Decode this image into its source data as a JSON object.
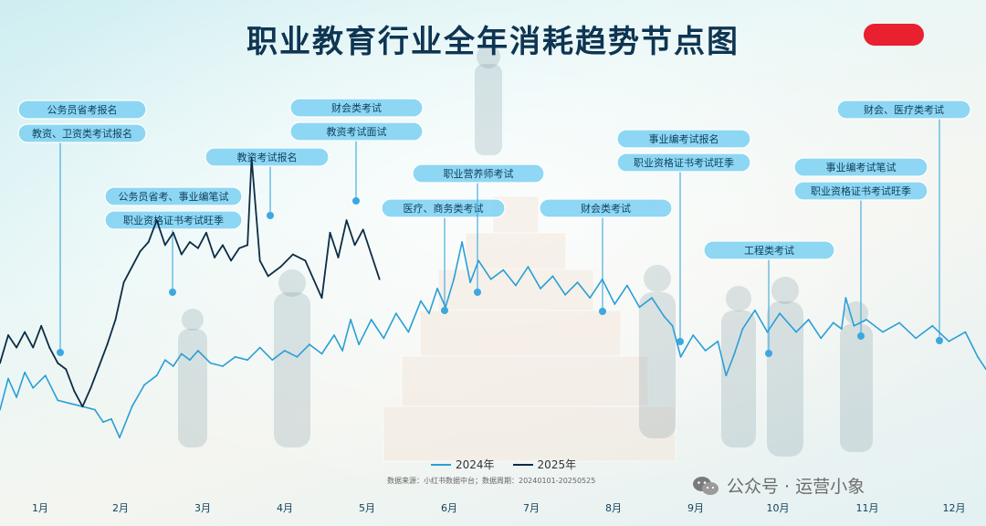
{
  "title": "职业教育行业全年消耗趋势节点图",
  "legend": [
    {
      "label": "2024年",
      "color": "#2a9fd6"
    },
    {
      "label": "2025年",
      "color": "#0d2d45"
    }
  ],
  "source": "数据来源：小红书数据中台；数据周期：20240101-20250525",
  "watermark": "公众号 · 运营小象",
  "months": [
    "1月",
    "2月",
    "3月",
    "4月",
    "5月",
    "6月",
    "7月",
    "8月",
    "9月",
    "10月",
    "11月",
    "12月"
  ],
  "annotations": [
    {
      "labels": [
        "公务员省考报名",
        "教资、卫资类考试报名"
      ],
      "month": 1.25
    },
    {
      "labels": [
        "公务员省考、事业编笔试",
        "职业资格证书考试旺季"
      ],
      "month": 2.65
    },
    {
      "labels": [
        "教资考试报名"
      ],
      "month": 3.8
    },
    {
      "labels": [
        "财会类考试",
        "教资考试面试"
      ],
      "month": 4.85
    },
    {
      "labels": [
        "医疗、商务类考试"
      ],
      "month": 5.95
    },
    {
      "labels": [
        "职业营养师考试"
      ],
      "month": 6.35
    },
    {
      "labels": [
        "财会类考试"
      ],
      "month": 7.95
    },
    {
      "labels": [
        "事业编考试报名",
        "职业资格证书考试旺季"
      ],
      "month": 8.85
    },
    {
      "labels": [
        "工程类考试"
      ],
      "month": 9.85
    },
    {
      "labels": [
        "事业编考试笔试",
        "职业资格证书考试旺季"
      ],
      "month": 10.9
    },
    {
      "labels": [
        "财会、医疗类考试"
      ],
      "month": 11.9
    }
  ],
  "chart_data": {
    "type": "line",
    "title": "职业教育行业全年消耗趋势节点图",
    "x_unit": "month",
    "xlim": [
      0.8,
      12.75
    ],
    "ylim": [
      0,
      100
    ],
    "x_ticks": [
      "1月",
      "2月",
      "3月",
      "4月",
      "5月",
      "6月",
      "7月",
      "8月",
      "9月",
      "10月",
      "11月",
      "12月"
    ],
    "series": [
      {
        "name": "2024年",
        "color": "#2a9fd6",
        "points": [
          [
            0.8,
            21
          ],
          [
            0.9,
            31
          ],
          [
            1.0,
            25
          ],
          [
            1.1,
            33
          ],
          [
            1.2,
            28
          ],
          [
            1.35,
            32
          ],
          [
            1.5,
            24
          ],
          [
            1.65,
            23
          ],
          [
            1.8,
            22
          ],
          [
            1.95,
            21
          ],
          [
            2.05,
            17
          ],
          [
            2.15,
            18
          ],
          [
            2.25,
            12
          ],
          [
            2.4,
            22
          ],
          [
            2.55,
            29
          ],
          [
            2.7,
            32
          ],
          [
            2.8,
            37
          ],
          [
            2.9,
            35
          ],
          [
            3.0,
            39
          ],
          [
            3.1,
            37
          ],
          [
            3.2,
            40
          ],
          [
            3.35,
            36
          ],
          [
            3.5,
            35
          ],
          [
            3.65,
            38
          ],
          [
            3.8,
            37
          ],
          [
            3.95,
            41
          ],
          [
            4.1,
            37
          ],
          [
            4.25,
            40
          ],
          [
            4.4,
            38
          ],
          [
            4.55,
            42
          ],
          [
            4.7,
            39
          ],
          [
            4.85,
            45
          ],
          [
            4.95,
            40
          ],
          [
            5.05,
            50
          ],
          [
            5.15,
            42
          ],
          [
            5.3,
            50
          ],
          [
            5.45,
            44
          ],
          [
            5.6,
            52
          ],
          [
            5.75,
            46
          ],
          [
            5.9,
            56
          ],
          [
            6.0,
            52
          ],
          [
            6.1,
            60
          ],
          [
            6.2,
            54
          ],
          [
            6.3,
            63
          ],
          [
            6.4,
            75
          ],
          [
            6.5,
            62
          ],
          [
            6.6,
            69
          ],
          [
            6.75,
            63
          ],
          [
            6.9,
            66
          ],
          [
            7.05,
            61
          ],
          [
            7.2,
            67
          ],
          [
            7.35,
            60
          ],
          [
            7.5,
            64
          ],
          [
            7.65,
            58
          ],
          [
            7.8,
            62
          ],
          [
            7.95,
            57
          ],
          [
            8.1,
            63
          ],
          [
            8.25,
            55
          ],
          [
            8.4,
            61
          ],
          [
            8.55,
            54
          ],
          [
            8.7,
            57
          ],
          [
            8.85,
            51
          ],
          [
            8.95,
            48
          ],
          [
            9.05,
            38
          ],
          [
            9.2,
            45
          ],
          [
            9.35,
            40
          ],
          [
            9.5,
            43
          ],
          [
            9.6,
            32
          ],
          [
            9.7,
            39
          ],
          [
            9.8,
            47
          ],
          [
            9.95,
            53
          ],
          [
            10.1,
            46
          ],
          [
            10.25,
            52
          ],
          [
            10.45,
            46
          ],
          [
            10.6,
            50
          ],
          [
            10.75,
            44
          ],
          [
            10.9,
            49
          ],
          [
            11.0,
            47
          ],
          [
            11.05,
            57
          ],
          [
            11.15,
            48
          ],
          [
            11.3,
            50
          ],
          [
            11.5,
            46
          ],
          [
            11.7,
            49
          ],
          [
            11.9,
            44
          ],
          [
            12.1,
            48
          ],
          [
            12.3,
            43
          ],
          [
            12.5,
            46
          ],
          [
            12.65,
            38
          ],
          [
            12.75,
            34
          ]
        ]
      },
      {
        "name": "2025年",
        "color": "#0d2d45",
        "points": [
          [
            0.8,
            36
          ],
          [
            0.9,
            45
          ],
          [
            1.0,
            41
          ],
          [
            1.1,
            46
          ],
          [
            1.2,
            41
          ],
          [
            1.3,
            48
          ],
          [
            1.4,
            41
          ],
          [
            1.5,
            36
          ],
          [
            1.6,
            34
          ],
          [
            1.7,
            27
          ],
          [
            1.8,
            22
          ],
          [
            1.9,
            28
          ],
          [
            2.0,
            35
          ],
          [
            2.1,
            42
          ],
          [
            2.2,
            50
          ],
          [
            2.3,
            62
          ],
          [
            2.4,
            67
          ],
          [
            2.5,
            72
          ],
          [
            2.6,
            75
          ],
          [
            2.7,
            82
          ],
          [
            2.8,
            74
          ],
          [
            2.9,
            78
          ],
          [
            3.0,
            71
          ],
          [
            3.1,
            75
          ],
          [
            3.2,
            73
          ],
          [
            3.3,
            78
          ],
          [
            3.4,
            70
          ],
          [
            3.5,
            74
          ],
          [
            3.6,
            69
          ],
          [
            3.7,
            73
          ],
          [
            3.8,
            74
          ],
          [
            3.85,
            102
          ],
          [
            3.95,
            69
          ],
          [
            4.05,
            64
          ],
          [
            4.2,
            67
          ],
          [
            4.35,
            71
          ],
          [
            4.5,
            69
          ],
          [
            4.6,
            63
          ],
          [
            4.7,
            57
          ],
          [
            4.8,
            78
          ],
          [
            4.9,
            70
          ],
          [
            5.0,
            82
          ],
          [
            5.1,
            74
          ],
          [
            5.2,
            79
          ],
          [
            5.3,
            71
          ],
          [
            5.4,
            63
          ]
        ]
      }
    ]
  }
}
